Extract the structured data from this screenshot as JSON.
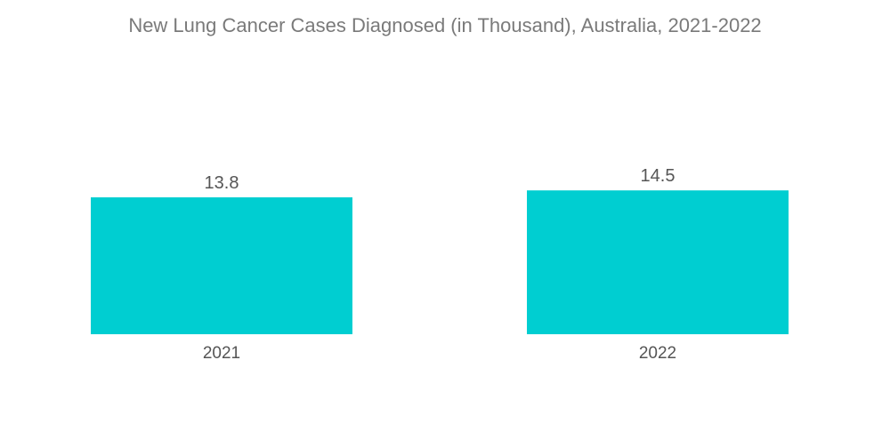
{
  "chart_data": {
    "type": "bar",
    "title": "New Lung Cancer Cases Diagnosed (in Thousand), Australia, 2021-2022",
    "categories": [
      "2021",
      "2022"
    ],
    "values": [
      13.8,
      14.5
    ],
    "data_labels": [
      "13.8",
      "14.5"
    ],
    "xlabel": "",
    "ylabel": "",
    "grid": false,
    "legend": "none",
    "bar_color": "#00ced1",
    "text_color": "#555555",
    "title_color": "#7a7a7a"
  }
}
